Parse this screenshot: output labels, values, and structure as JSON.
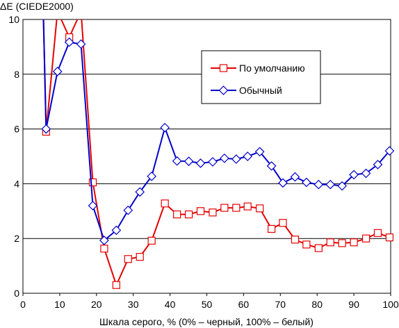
{
  "chart_data": {
    "type": "line",
    "title": "",
    "xlabel": "Шкала серого, % (0% – черный, 100% – белый)",
    "ylabel": "ΔE (CIEDE2000)",
    "xlim": [
      0,
      100
    ],
    "ylim": [
      0,
      10
    ],
    "xticks": [
      "0",
      "10",
      "20",
      "30",
      "40",
      "50",
      "60",
      "70",
      "80",
      "90",
      "100"
    ],
    "yticks": [
      "0",
      "2",
      "4",
      "6",
      "8",
      "10"
    ],
    "grid": "horizontal",
    "legend_position": "top-right",
    "series": [
      {
        "name": "По умолчанию",
        "color": "#e60000",
        "marker": "square",
        "x": [
          5.5,
          6.3,
          9.4,
          12.6,
          15.8,
          19.0,
          22.1,
          25.4,
          28.6,
          31.8,
          35.0,
          38.6,
          41.9,
          45.1,
          48.3,
          51.6,
          54.8,
          58.0,
          61.1,
          64.4,
          67.6,
          70.7,
          74.0,
          77.1,
          80.4,
          83.6,
          86.8,
          90.0,
          93.3,
          96.5,
          99.7
        ],
        "y": [
          10.5,
          5.9,
          10.3,
          9.35,
          10.3,
          4.05,
          1.63,
          0.3,
          1.25,
          1.33,
          1.92,
          3.28,
          2.88,
          2.88,
          3.0,
          2.95,
          3.12,
          3.12,
          3.17,
          3.1,
          2.35,
          2.57,
          1.96,
          1.78,
          1.65,
          1.86,
          1.83,
          1.86,
          2.0,
          2.2,
          2.04
        ]
      },
      {
        "name": "Обычный",
        "color": "#0000cc",
        "marker": "diamond",
        "x": [
          5.5,
          6.3,
          9.4,
          12.6,
          15.8,
          19.0,
          22.1,
          25.4,
          28.6,
          31.8,
          35.0,
          38.6,
          41.9,
          45.1,
          48.3,
          51.6,
          54.8,
          58.0,
          61.1,
          64.4,
          67.6,
          70.7,
          74.0,
          77.1,
          80.4,
          83.6,
          86.8,
          90.0,
          93.3,
          96.5,
          99.7
        ],
        "y": [
          10.5,
          6.0,
          8.1,
          9.17,
          9.1,
          3.2,
          1.93,
          2.3,
          3.03,
          3.7,
          4.27,
          6.05,
          4.83,
          4.82,
          4.75,
          4.8,
          4.93,
          4.9,
          5.0,
          5.17,
          4.65,
          4.03,
          4.25,
          4.05,
          3.97,
          3.97,
          3.92,
          4.33,
          4.38,
          4.7,
          5.2
        ]
      }
    ]
  }
}
